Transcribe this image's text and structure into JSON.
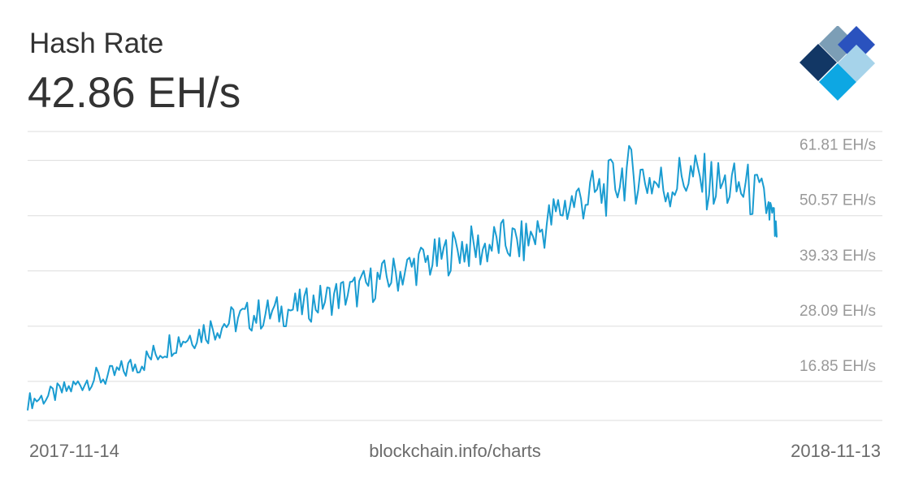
{
  "header": {
    "title": "Hash Rate",
    "current_value": "42.86 EH/s"
  },
  "footer": {
    "start_date": "2017-11-14",
    "source": "blockchain.info/charts",
    "end_date": "2018-11-13"
  },
  "logo": {
    "icon": "blockchain-logo-icon",
    "colors": [
      "#123765",
      "#7c9eb6",
      "#2a52be",
      "#0da7e3",
      "#a6d3ea"
    ]
  },
  "colors": {
    "line": "#1a9cd1",
    "grid": "#dddddd",
    "tick": "#999999"
  },
  "chart_data": {
    "type": "line",
    "title": "Hash Rate",
    "ylabel": "",
    "xlabel": "",
    "x_range": [
      "2017-11-14",
      "2018-11-13"
    ],
    "y_ticks": [
      {
        "value": 16.85,
        "label": "16.85 EH/s"
      },
      {
        "value": 28.09,
        "label": "28.09 EH/s"
      },
      {
        "value": 39.33,
        "label": "39.33 EH/s"
      },
      {
        "value": 50.57,
        "label": "50.57 EH/s"
      },
      {
        "value": 61.81,
        "label": "61.81 EH/s"
      }
    ],
    "ylim": [
      5.6,
      64.4
    ],
    "grid": true,
    "series": [
      {
        "x": [
          "2017-11-14",
          "2017-11-24",
          "2017-12-04",
          "2017-12-14",
          "2017-12-24",
          "2018-01-03",
          "2018-01-13",
          "2018-01-23",
          "2018-02-02",
          "2018-02-12",
          "2018-02-22",
          "2018-03-04",
          "2018-03-14",
          "2018-03-24",
          "2018-04-03",
          "2018-04-13",
          "2018-04-23",
          "2018-05-03",
          "2018-05-13",
          "2018-05-23",
          "2018-06-02",
          "2018-06-12",
          "2018-06-22",
          "2018-07-02",
          "2018-07-12",
          "2018-07-22",
          "2018-08-01",
          "2018-08-11",
          "2018-08-21",
          "2018-08-31",
          "2018-09-10",
          "2018-09-20",
          "2018-09-30",
          "2018-10-10",
          "2018-10-20",
          "2018-10-30",
          "2018-11-09",
          "2018-11-13"
        ],
        "values": [
          9.5,
          10.5,
          12.0,
          14.0,
          14.5,
          16.5,
          18.5,
          21.5,
          23.0,
          24.5,
          26.0,
          27.0,
          27.5,
          28.5,
          29.5,
          31.0,
          32.0,
          34.0,
          35.5,
          37.5,
          38.5,
          41.0,
          40.5,
          42.0,
          41.5,
          44.5,
          49.0,
          51.0,
          52.0,
          56.0,
          55.0,
          53.0,
          55.5,
          54.0,
          53.0,
          52.5,
          49.0,
          42.86
        ]
      }
    ]
  }
}
